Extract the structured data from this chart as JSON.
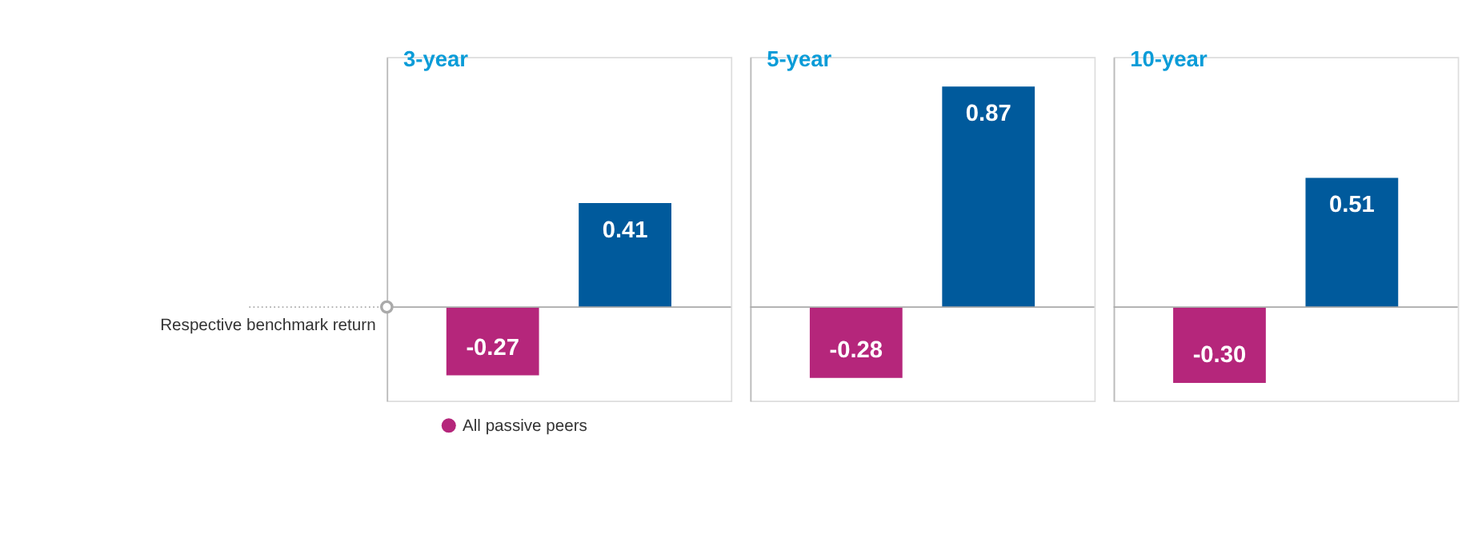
{
  "chart_data": [
    {
      "type": "bar",
      "title": "3-year",
      "categories": [
        null
      ],
      "tick_labels": false,
      "legend": "bottom",
      "series": [
        {
          "name": "All passive peers",
          "color": "#b5267b",
          "values": [
            -0.27
          ],
          "value_labels": [
            "-0.27"
          ]
        },
        {
          "color": "#005a9c",
          "values": [
            0.41
          ],
          "value_labels": [
            "0.41"
          ]
        }
      ],
      "ref_lines": [
        {
          "axis": "y",
          "value": 0,
          "label": "Respective benchmark return"
        }
      ]
    },
    {
      "type": "bar",
      "title": "5-year",
      "categories": [
        null
      ],
      "tick_labels": false,
      "series": [
        {
          "color": "#b5267b",
          "values": [
            -0.28
          ],
          "value_labels": [
            "-0.28"
          ]
        },
        {
          "color": "#005a9c",
          "values": [
            0.87
          ],
          "value_labels": [
            "0.87"
          ]
        }
      ],
      "ref_lines": [
        {
          "axis": "y",
          "value": 0
        }
      ]
    },
    {
      "type": "bar",
      "title": "10-year",
      "categories": [
        null
      ],
      "tick_labels": false,
      "series": [
        {
          "color": "#b5267b",
          "values": [
            -0.3
          ],
          "value_labels": [
            "-0.30"
          ]
        },
        {
          "color": "#005a9c",
          "values": [
            0.51
          ],
          "value_labels": [
            "0.51"
          ]
        }
      ],
      "ref_lines": [
        {
          "axis": "y",
          "value": 0
        }
      ]
    }
  ]
}
